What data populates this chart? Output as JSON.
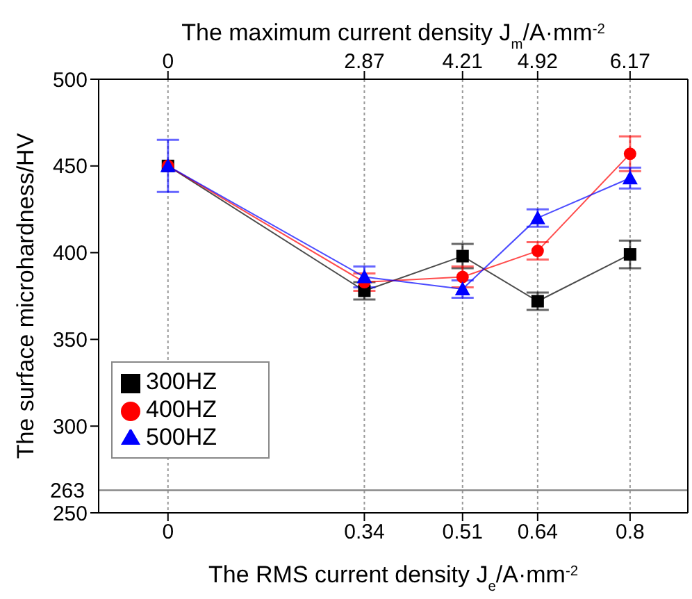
{
  "chart_data": {
    "type": "line",
    "xlabel": "The RMS current density J$_{e}$/A·mm$^{-2}$",
    "ylabel": "The surface microhardness/HV",
    "x2label": "The maximum current density J$_{m}$/A·mm$^{-2}$",
    "x": [
      0,
      0.34,
      0.51,
      0.64,
      0.8
    ],
    "xlim": [
      -0.12,
      0.9
    ],
    "xticks": [
      0,
      0.34,
      0.51,
      0.64,
      0.8
    ],
    "annotations": [
      "0",
      "2.87",
      "4.21",
      "4.92",
      "6.17"
    ],
    "ylim": [
      250,
      500
    ],
    "yticks": [
      250,
      300,
      350,
      400,
      450,
      500
    ],
    "ref_lines": [
      {
        "axis": "y",
        "value": 263,
        "label": "263",
        "color": "#888888"
      }
    ],
    "grid": "x",
    "legend": "bottom left",
    "line_style": "solid",
    "series": [
      {
        "name": "300HZ",
        "color": "#000000",
        "marker": "square",
        "values": [
          450,
          378,
          398,
          372,
          399
        ],
        "errors": [
          null,
          5,
          7,
          5,
          8
        ]
      },
      {
        "name": "400HZ",
        "color": "#ff0000",
        "marker": "circle",
        "values": [
          450,
          383,
          386,
          401,
          457
        ],
        "errors": [
          null,
          5,
          6,
          5,
          10
        ]
      },
      {
        "name": "500HZ",
        "color": "#0000ff",
        "marker": "triangle",
        "values": [
          450,
          386,
          379,
          420,
          443
        ],
        "errors": [
          15,
          6,
          5,
          5,
          6
        ]
      }
    ]
  }
}
